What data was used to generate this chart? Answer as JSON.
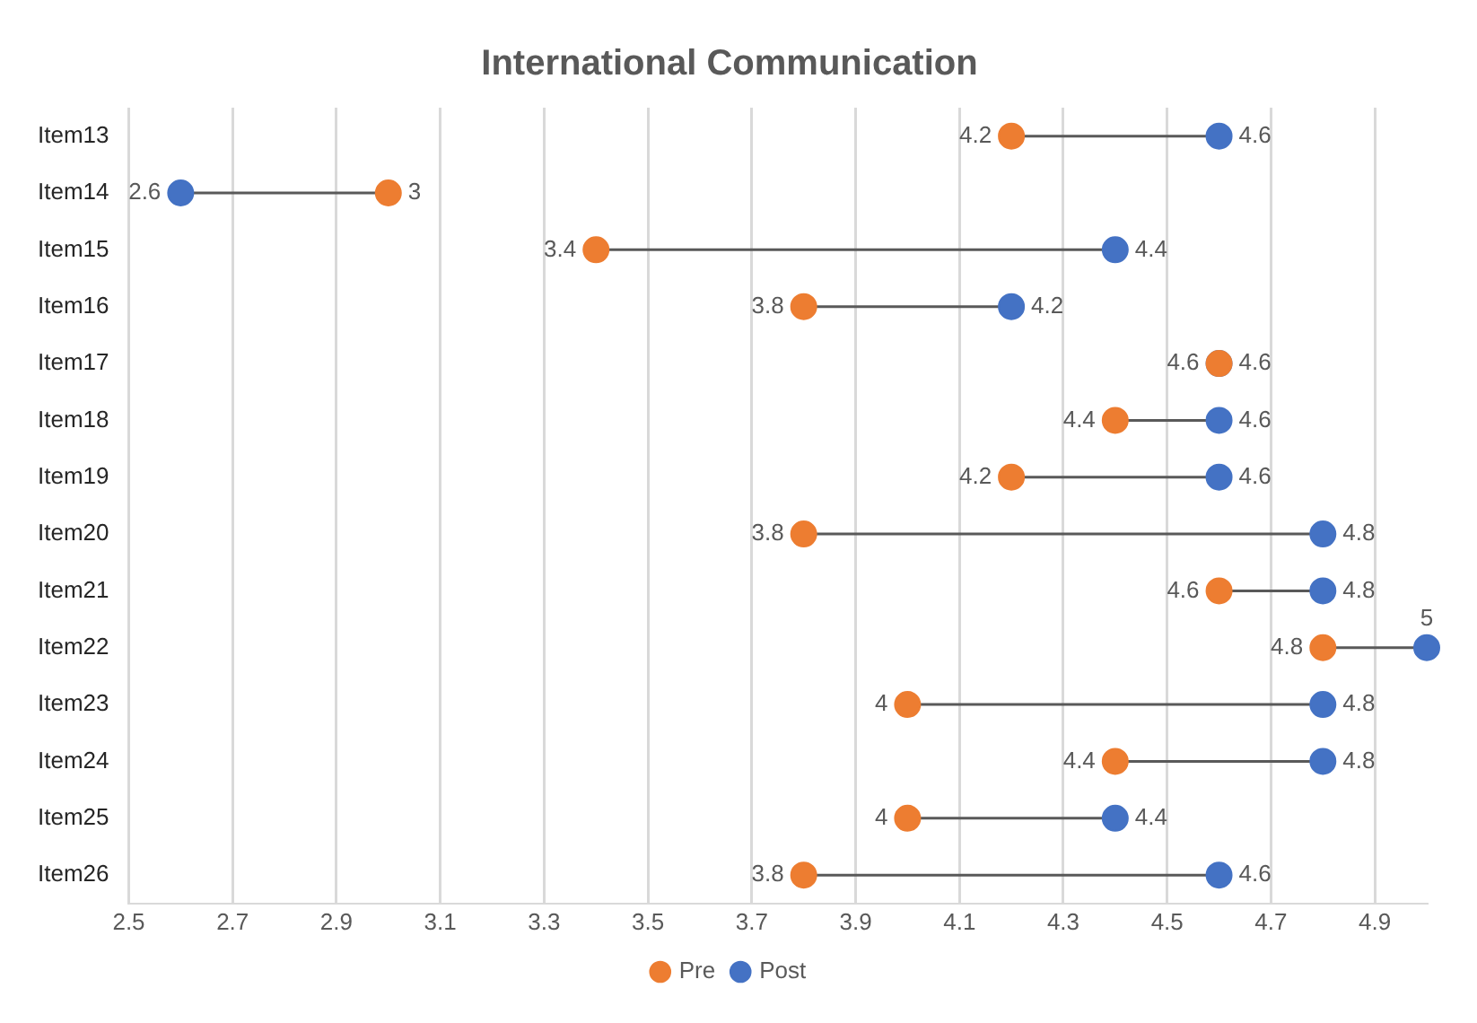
{
  "chart_data": {
    "type": "scatter",
    "orientation": "horizontal",
    "title": "International Communication",
    "categories": [
      "Item13",
      "Item14",
      "Item15",
      "Item16",
      "Item17",
      "Item18",
      "Item19",
      "Item20",
      "Item21",
      "Item22",
      "Item23",
      "Item24",
      "Item25",
      "Item26"
    ],
    "series": [
      {
        "name": "Pre",
        "color": "#ed7d31",
        "values": [
          4.2,
          3,
          3.4,
          3.8,
          4.6,
          4.4,
          4.2,
          3.8,
          4.6,
          4.8,
          4,
          4.4,
          4,
          3.8
        ]
      },
      {
        "name": "Post",
        "color": "#4472c4",
        "values": [
          4.6,
          2.6,
          4.4,
          4.2,
          4.6,
          4.6,
          4.6,
          4.8,
          4.8,
          5,
          4.8,
          4.8,
          4.4,
          4.6
        ]
      }
    ],
    "xlim": [
      2.5,
      5
    ],
    "xticks": [
      2.5,
      2.7,
      2.9,
      3.1,
      3.3,
      3.5,
      3.7,
      3.9,
      4.1,
      4.3,
      4.5,
      4.7,
      4.9
    ],
    "grid": "x",
    "legend": "bottom",
    "marker": "circle",
    "data_labels": true
  }
}
